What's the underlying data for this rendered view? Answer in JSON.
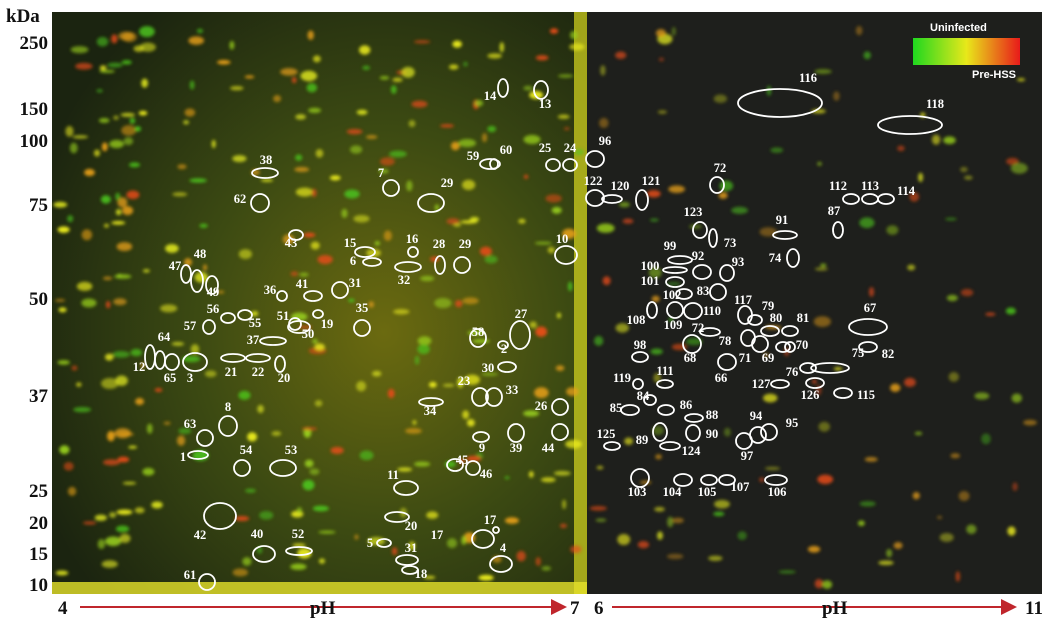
{
  "figure": {
    "y_axis_unit": "kDa",
    "mw_markers": [
      250,
      150,
      100,
      75,
      50,
      37,
      25,
      20,
      15,
      10
    ],
    "x_axis": {
      "left": {
        "start": "4",
        "label": "pH",
        "end": "7"
      },
      "right": {
        "start": "6",
        "label": "pH",
        "end": "11"
      }
    },
    "legend": {
      "low": "Uninfected",
      "high": "Pre-HSS"
    },
    "spot_labels": [
      "14",
      "13",
      "38",
      "7",
      "29",
      "62",
      "59",
      "60",
      "25",
      "24",
      "43",
      "15",
      "16",
      "6",
      "28",
      "29",
      "10",
      "32",
      "47",
      "48",
      "49",
      "31",
      "41",
      "36",
      "56",
      "57",
      "55",
      "35",
      "51",
      "37",
      "50",
      "19",
      "64",
      "12",
      "65",
      "3",
      "21",
      "22",
      "20",
      "58",
      "27",
      "2",
      "30",
      "23",
      "33",
      "34",
      "26",
      "8",
      "63",
      "9",
      "39",
      "44",
      "1",
      "54",
      "53",
      "45",
      "46",
      "11",
      "42",
      "20",
      "40",
      "52",
      "17",
      "17",
      "5",
      "31",
      "18",
      "4",
      "61",
      "96",
      "116",
      "118",
      "72",
      "122",
      "120",
      "121",
      "112",
      "113",
      "114",
      "87",
      "123",
      "73",
      "91",
      "74",
      "99",
      "92",
      "93",
      "100",
      "101",
      "102",
      "83",
      "117",
      "108",
      "109",
      "110",
      "79",
      "80",
      "81",
      "67",
      "72",
      "98",
      "68",
      "78",
      "71",
      "69",
      "70",
      "82",
      "75",
      "66",
      "76",
      "119",
      "111",
      "127",
      "126",
      "115",
      "84",
      "85",
      "86",
      "88",
      "94",
      "95",
      "125",
      "89",
      "90",
      "124",
      "97",
      "103",
      "104",
      "105",
      "107",
      "106"
    ]
  }
}
